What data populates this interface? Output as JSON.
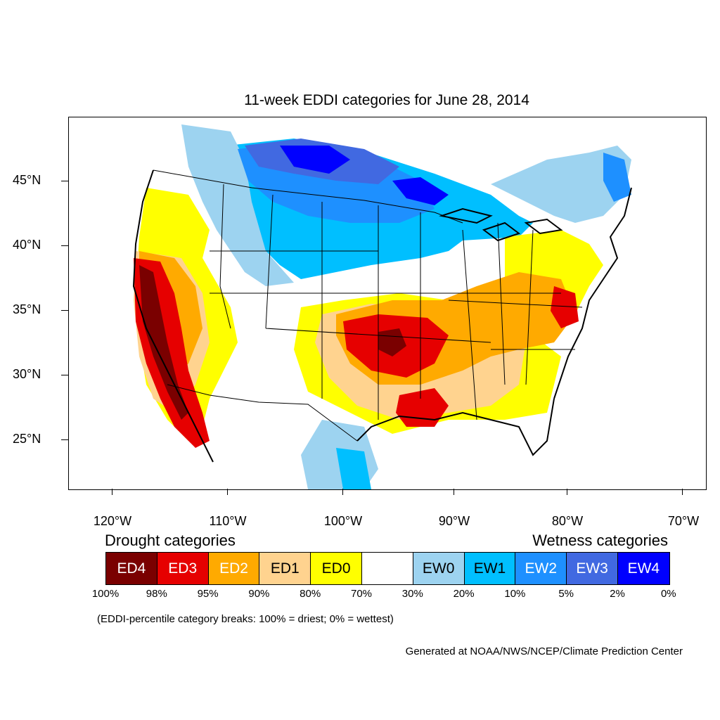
{
  "title": "11-week EDDI categories for June 28, 2014",
  "axes": {
    "lat_labels": [
      "45°N",
      "40°N",
      "35°N",
      "30°N",
      "25°N"
    ],
    "lon_labels": [
      "120°W",
      "110°W",
      "100°W",
      "90°W",
      "80°W",
      "70°W"
    ]
  },
  "legend": {
    "drought_heading": "Drought categories",
    "wetness_heading": "Wetness categories",
    "categories": [
      {
        "label": "ED4",
        "color": "#7a0000",
        "text_color": "#ffffff"
      },
      {
        "label": "ED3",
        "color": "#e60000",
        "text_color": "#ffffff"
      },
      {
        "label": "ED2",
        "color": "#ffaa00",
        "text_color": "#ffffff"
      },
      {
        "label": "ED1",
        "color": "#ffd38f",
        "text_color": "#000000"
      },
      {
        "label": "ED0",
        "color": "#ffff00",
        "text_color": "#000000"
      },
      {
        "label": "",
        "color": "#ffffff",
        "text_color": "#000000"
      },
      {
        "label": "EW0",
        "color": "#9dd3f0",
        "text_color": "#000000"
      },
      {
        "label": "EW1",
        "color": "#00bfff",
        "text_color": "#000000"
      },
      {
        "label": "EW2",
        "color": "#1e90ff",
        "text_color": "#ffffff"
      },
      {
        "label": "EW3",
        "color": "#4169e1",
        "text_color": "#ffffff"
      },
      {
        "label": "EW4",
        "color": "#0000ff",
        "text_color": "#ffffff"
      }
    ],
    "percent_breaks": [
      "100%",
      "98%",
      "95%",
      "90%",
      "80%",
      "70%",
      "30%",
      "20%",
      "10%",
      "5%",
      "2%",
      "0%"
    ]
  },
  "note": "(EDDI-percentile category breaks: 100% = driest; 0% = wettest)",
  "credit": "Generated at NOAA/NWS/NCEP/Climate Prediction Center"
}
